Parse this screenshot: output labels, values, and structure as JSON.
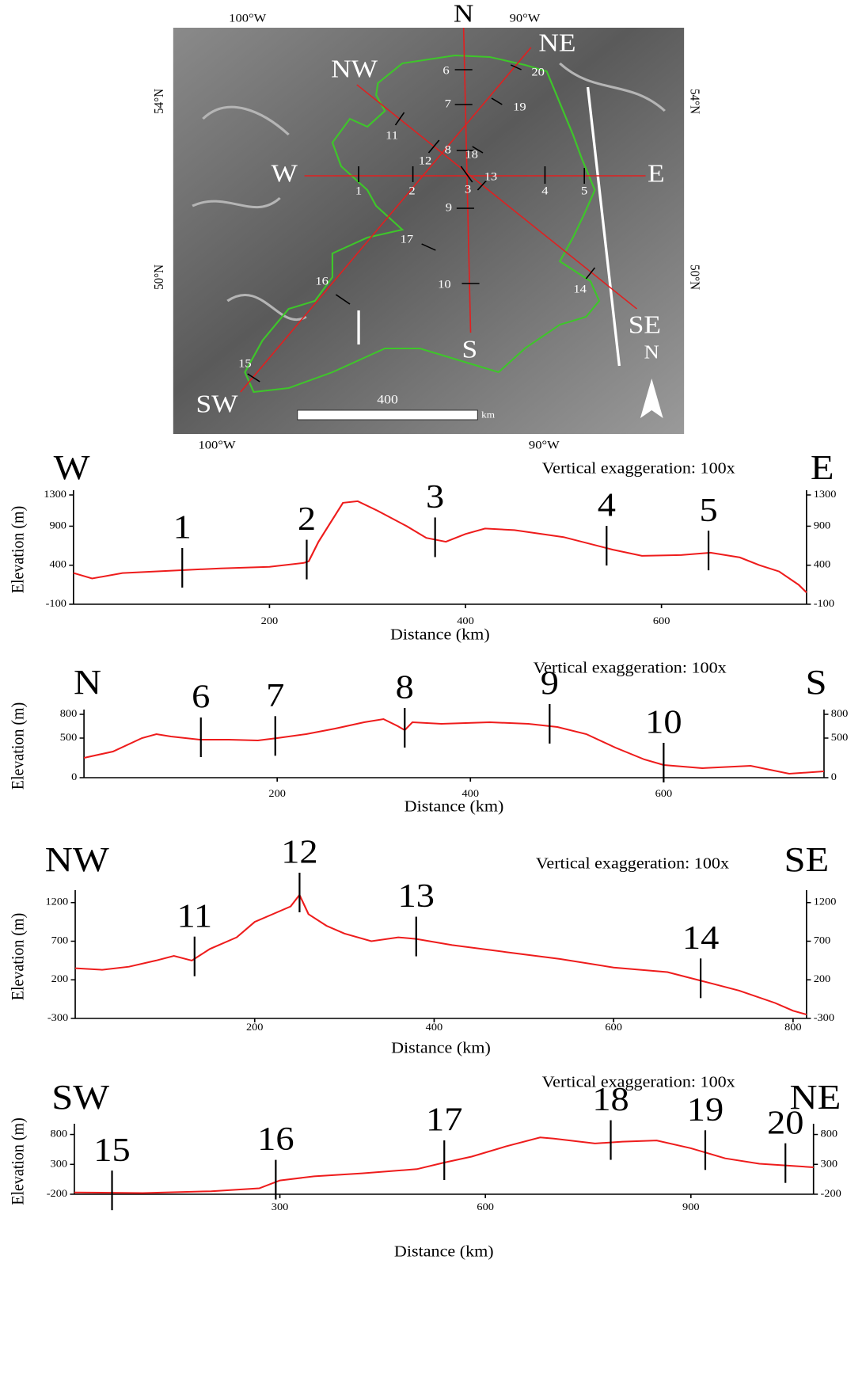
{
  "map": {
    "lon_top": [
      "100°W",
      "90°W"
    ],
    "lon_bottom": [
      "100°W",
      "90°W"
    ],
    "lat_left": [
      "54°N",
      "50°N"
    ],
    "lat_right": [
      "54°N",
      "50°N"
    ],
    "directions": [
      "N",
      "NE",
      "E",
      "SE",
      "S",
      "SW",
      "W",
      "NW"
    ],
    "points": [
      "1",
      "2",
      "3",
      "4",
      "5",
      "6",
      "7",
      "8",
      "9",
      "10",
      "11",
      "12",
      "13",
      "14",
      "15",
      "16",
      "17",
      "18",
      "19",
      "20"
    ],
    "scale": "400",
    "scale_unit": "km",
    "north": "N"
  },
  "chart_data": [
    {
      "type": "line",
      "start_label": "W",
      "end_label": "E",
      "annotation": "Vertical exaggeration: 100x",
      "y_label": "Elevation (m)",
      "x_label": "Distance (km)",
      "color": "#ee1c1c",
      "xlim": [
        0,
        748
      ],
      "xticks": [
        200,
        400,
        600
      ],
      "ylim": [
        -100,
        1300
      ],
      "yticks": [
        -100,
        400,
        900,
        1300
      ],
      "x": [
        0,
        19,
        50,
        100,
        150,
        200,
        235,
        240,
        250,
        260,
        275,
        290,
        310,
        340,
        360,
        380,
        400,
        420,
        450,
        500,
        550,
        580,
        620,
        650,
        680,
        700,
        720,
        740,
        748
      ],
      "values": [
        300,
        230,
        300,
        330,
        360,
        380,
        430,
        450,
        700,
        900,
        1200,
        1220,
        1100,
        900,
        750,
        700,
        800,
        870,
        850,
        760,
        600,
        520,
        530,
        560,
        500,
        400,
        320,
        150,
        50
      ],
      "markers": [
        {
          "label": "1",
          "x": 111
        },
        {
          "label": "2",
          "x": 238
        },
        {
          "label": "3",
          "x": 369
        },
        {
          "label": "4",
          "x": 544
        },
        {
          "label": "5",
          "x": 648
        }
      ]
    },
    {
      "type": "line",
      "start_label": "N",
      "end_label": "S",
      "annotation": "Vertical exaggeration: 100x",
      "y_label": "Elevation (m)",
      "x_label": "Distance (km)",
      "color": "#ee1c1c",
      "xlim": [
        0,
        766
      ],
      "xticks": [
        200,
        400,
        600
      ],
      "ylim": [
        0,
        800
      ],
      "yticks": [
        0,
        500,
        800
      ],
      "x": [
        0,
        30,
        60,
        75,
        90,
        120,
        150,
        180,
        200,
        230,
        260,
        290,
        310,
        325,
        332,
        340,
        370,
        420,
        460,
        490,
        520,
        550,
        580,
        600,
        640,
        690,
        730,
        766
      ],
      "values": [
        250,
        330,
        500,
        550,
        520,
        480,
        480,
        470,
        500,
        550,
        620,
        700,
        740,
        650,
        600,
        700,
        680,
        700,
        680,
        640,
        550,
        380,
        230,
        160,
        120,
        150,
        50,
        80
      ],
      "markers": [
        {
          "label": "6",
          "x": 121
        },
        {
          "label": "7",
          "x": 198
        },
        {
          "label": "8",
          "x": 332
        },
        {
          "label": "9",
          "x": 482
        },
        {
          "label": "10",
          "x": 600
        }
      ]
    },
    {
      "type": "line",
      "start_label": "NW",
      "end_label": "SE",
      "annotation": "Vertical exaggeration: 100x",
      "y_label": "Elevation (m)",
      "x_label": "Distance (km)",
      "color": "#ee1c1c",
      "xlim": [
        0,
        815
      ],
      "xticks": [
        200,
        400,
        600,
        800
      ],
      "ylim": [
        -300,
        1300
      ],
      "yticks": [
        -300,
        200,
        700,
        1200
      ],
      "x": [
        0,
        30,
        60,
        90,
        110,
        130,
        150,
        180,
        200,
        220,
        240,
        250,
        260,
        280,
        300,
        330,
        360,
        380,
        420,
        480,
        540,
        600,
        660,
        710,
        740,
        780,
        800,
        815
      ],
      "values": [
        350,
        330,
        370,
        450,
        510,
        450,
        600,
        750,
        950,
        1050,
        1150,
        1300,
        1050,
        900,
        800,
        700,
        750,
        730,
        650,
        560,
        470,
        360,
        300,
        150,
        60,
        -100,
        -200,
        -250
      ],
      "markers": [
        {
          "label": "11",
          "x": 133
        },
        {
          "label": "12",
          "x": 250
        },
        {
          "label": "13",
          "x": 380
        },
        {
          "label": "14",
          "x": 697
        }
      ]
    },
    {
      "type": "line",
      "start_label": "SW",
      "end_label": "NE",
      "annotation": "Vertical exaggeration: 100x",
      "y_label": "Elevation (m)",
      "x_label": "Distance (km)",
      "color": "#ee1c1c",
      "xlim": [
        0,
        1079
      ],
      "xticks": [
        300,
        600,
        900
      ],
      "ylim": [
        -200,
        900
      ],
      "yticks": [
        -200,
        300,
        800
      ],
      "x": [
        0,
        100,
        200,
        270,
        300,
        350,
        420,
        500,
        540,
        580,
        630,
        680,
        700,
        760,
        800,
        850,
        900,
        950,
        1000,
        1040,
        1079
      ],
      "values": [
        -170,
        -180,
        -150,
        -100,
        30,
        100,
        150,
        220,
        330,
        430,
        600,
        750,
        730,
        650,
        680,
        700,
        570,
        400,
        310,
        280,
        250
      ],
      "markers": [
        {
          "label": "15",
          "x": 55
        },
        {
          "label": "16",
          "x": 294
        },
        {
          "label": "17",
          "x": 540
        },
        {
          "label": "18",
          "x": 783
        },
        {
          "label": "19",
          "x": 921
        },
        {
          "label": "20",
          "x": 1038
        }
      ]
    }
  ]
}
